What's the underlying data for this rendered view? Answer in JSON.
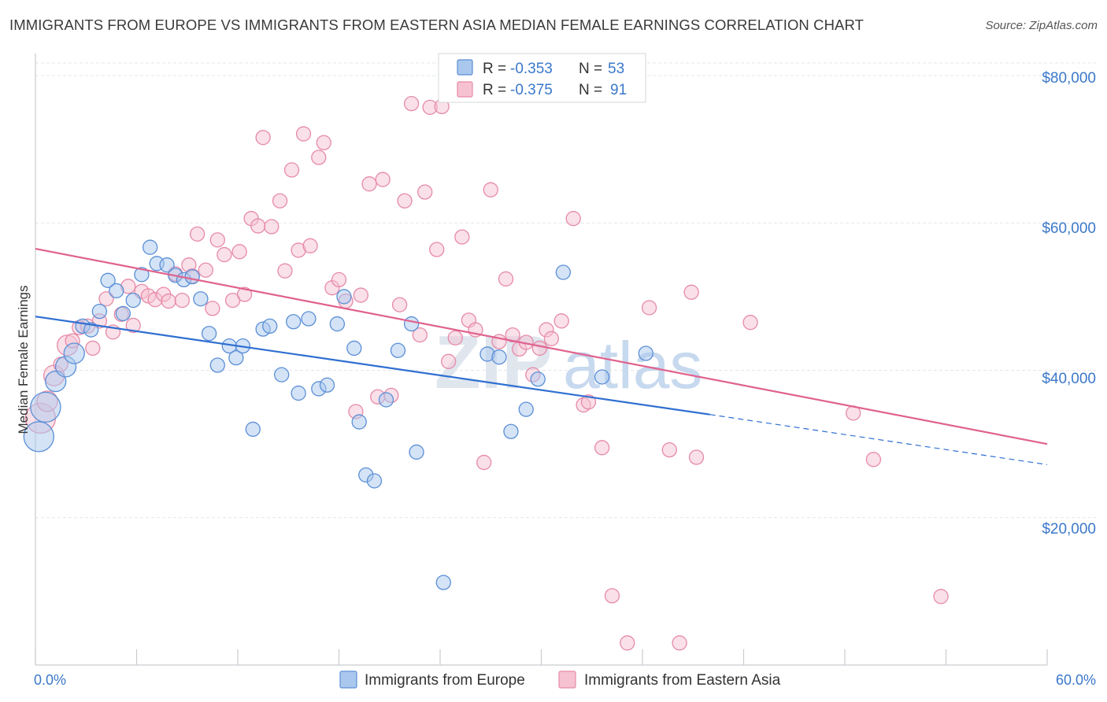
{
  "title": "IMMIGRANTS FROM EUROPE VS IMMIGRANTS FROM EASTERN ASIA MEDIAN FEMALE EARNINGS CORRELATION CHART",
  "source": "Source: ZipAtlas.com",
  "watermark": {
    "zip": "ZIP",
    "atlas": "atlas"
  },
  "colors": {
    "europe_fill": "#aac8ee",
    "europe_stroke": "#5b8fd6",
    "europe_line": "#2f6fd1",
    "asia_fill": "#f6c2d2",
    "asia_stroke": "#e68aa8",
    "asia_line": "#e0628e",
    "grid": "#e3e6ea",
    "axis_text": "#3b78c9"
  },
  "legend": {
    "rows": [
      {
        "r_label": "R =",
        "r_value": "-0.353",
        "n_label": "N =",
        "n_value": "53"
      },
      {
        "r_label": "R =",
        "r_value": "-0.375",
        "n_label": "N =",
        "n_value": "91"
      }
    ]
  },
  "bottom_legend": [
    "Immigrants from Europe",
    "Immigrants from Eastern Asia"
  ],
  "chart_data": {
    "type": "scatter",
    "title": "IMMIGRANTS FROM EUROPE VS IMMIGRANTS FROM EASTERN ASIA MEDIAN FEMALE EARNINGS CORRELATION CHART",
    "xlabel": "",
    "ylabel": "Median Female Earnings",
    "xlim": [
      0,
      60
    ],
    "ylim": [
      0,
      83000
    ],
    "x_tick_labels": [
      "0.0%",
      "60.0%"
    ],
    "y_ticks": [
      20000,
      40000,
      60000,
      80000
    ],
    "y_tick_labels": [
      "$20,000",
      "$40,000",
      "$60,000",
      "$80,000"
    ],
    "grid": true,
    "legend_position": "top-center",
    "series": [
      {
        "name": "Immigrants from Europe",
        "r": -0.353,
        "n": 53,
        "trend": {
          "x0": 0,
          "y0": 47300,
          "x1": 40.0,
          "y1": 34000,
          "dash_to_x": 60,
          "dash_to_y": 27200
        },
        "points": [
          [
            0.2,
            31000,
            3
          ],
          [
            0.6,
            35000,
            3
          ],
          [
            1.2,
            38500,
            2
          ],
          [
            1.8,
            40500,
            2
          ],
          [
            2.3,
            42300,
            2
          ],
          [
            2.8,
            46000,
            1
          ],
          [
            3.3,
            45500,
            1
          ],
          [
            3.8,
            48000,
            1
          ],
          [
            4.3,
            52200,
            1
          ],
          [
            4.8,
            50800,
            1
          ],
          [
            5.2,
            47700,
            1
          ],
          [
            5.8,
            49500,
            1
          ],
          [
            6.3,
            53000,
            1
          ],
          [
            6.8,
            56700,
            1
          ],
          [
            7.2,
            54500,
            1
          ],
          [
            7.8,
            54300,
            1
          ],
          [
            8.3,
            52900,
            1
          ],
          [
            8.8,
            52300,
            1
          ],
          [
            9.3,
            52700,
            1
          ],
          [
            9.8,
            49700,
            1
          ],
          [
            10.3,
            45000,
            1
          ],
          [
            10.8,
            40700,
            1
          ],
          [
            11.5,
            43300,
            1
          ],
          [
            11.9,
            41700,
            1
          ],
          [
            12.3,
            43300,
            1
          ],
          [
            12.9,
            32000,
            1
          ],
          [
            13.5,
            45600,
            1
          ],
          [
            13.9,
            46000,
            1
          ],
          [
            14.6,
            39400,
            1
          ],
          [
            15.3,
            46600,
            1
          ],
          [
            15.6,
            36900,
            1
          ],
          [
            16.2,
            47000,
            1
          ],
          [
            16.8,
            37500,
            1
          ],
          [
            17.3,
            38000,
            1
          ],
          [
            17.9,
            46300,
            1
          ],
          [
            18.3,
            50000,
            1
          ],
          [
            18.9,
            43000,
            1
          ],
          [
            19.2,
            33000,
            1
          ],
          [
            19.6,
            25800,
            1
          ],
          [
            20.1,
            25000,
            1
          ],
          [
            20.8,
            36000,
            1
          ],
          [
            21.5,
            42700,
            1
          ],
          [
            22.3,
            46300,
            1
          ],
          [
            22.6,
            28900,
            1
          ],
          [
            24.2,
            11200,
            1
          ],
          [
            26.8,
            42200,
            1
          ],
          [
            27.5,
            41800,
            1
          ],
          [
            28.2,
            31700,
            1
          ],
          [
            29.1,
            34700,
            1
          ],
          [
            29.8,
            38800,
            1
          ],
          [
            31.3,
            53300,
            1
          ],
          [
            33.6,
            39100,
            1
          ],
          [
            36.2,
            42300,
            1
          ]
        ]
      },
      {
        "name": "Immigrants from Eastern Asia",
        "r": -0.375,
        "n": 91,
        "trend": {
          "x0": 0,
          "y0": 56500,
          "x1": 60.0,
          "y1": 30000
        },
        "points": [
          [
            0.3,
            33500,
            3
          ],
          [
            0.7,
            35800,
            2
          ],
          [
            1.1,
            39300,
            2
          ],
          [
            1.5,
            40800,
            1
          ],
          [
            1.9,
            43400,
            2
          ],
          [
            2.2,
            44000,
            1
          ],
          [
            2.6,
            45800,
            1
          ],
          [
            3.1,
            46000,
            1
          ],
          [
            3.4,
            43000,
            1
          ],
          [
            3.8,
            46700,
            1
          ],
          [
            4.2,
            49700,
            1
          ],
          [
            4.6,
            45200,
            1
          ],
          [
            5.1,
            47600,
            1
          ],
          [
            5.5,
            51400,
            1
          ],
          [
            5.8,
            46100,
            1
          ],
          [
            6.3,
            50700,
            1
          ],
          [
            6.7,
            50100,
            1
          ],
          [
            7.1,
            49600,
            1
          ],
          [
            7.6,
            50300,
            1
          ],
          [
            7.9,
            49400,
            1
          ],
          [
            8.3,
            53100,
            1
          ],
          [
            8.7,
            49500,
            1
          ],
          [
            9.1,
            54300,
            1
          ],
          [
            9.3,
            52800,
            1
          ],
          [
            9.6,
            58500,
            1
          ],
          [
            10.1,
            53600,
            1
          ],
          [
            10.5,
            48400,
            1
          ],
          [
            10.8,
            57700,
            1
          ],
          [
            11.2,
            55700,
            1
          ],
          [
            11.7,
            49500,
            1
          ],
          [
            12.1,
            56100,
            1
          ],
          [
            12.4,
            50300,
            1
          ],
          [
            12.8,
            60600,
            1
          ],
          [
            13.2,
            59600,
            1
          ],
          [
            13.5,
            71600,
            1
          ],
          [
            14.0,
            59500,
            1
          ],
          [
            14.5,
            63000,
            1
          ],
          [
            14.8,
            53500,
            1
          ],
          [
            15.2,
            67200,
            1
          ],
          [
            15.6,
            56300,
            1
          ],
          [
            15.9,
            72100,
            1
          ],
          [
            16.3,
            56900,
            1
          ],
          [
            16.8,
            68900,
            1
          ],
          [
            17.1,
            70900,
            1
          ],
          [
            17.6,
            51200,
            1
          ],
          [
            18.0,
            52300,
            1
          ],
          [
            18.4,
            49400,
            1
          ],
          [
            19.0,
            34400,
            1
          ],
          [
            19.3,
            50200,
            1
          ],
          [
            19.8,
            65300,
            1
          ],
          [
            20.3,
            36400,
            1
          ],
          [
            20.6,
            65900,
            1
          ],
          [
            21.1,
            36600,
            1
          ],
          [
            21.6,
            48900,
            1
          ],
          [
            21.9,
            63000,
            1
          ],
          [
            22.3,
            76200,
            1
          ],
          [
            22.8,
            44800,
            1
          ],
          [
            23.1,
            64200,
            1
          ],
          [
            23.4,
            75700,
            1
          ],
          [
            23.8,
            56400,
            1
          ],
          [
            24.1,
            75800,
            1
          ],
          [
            24.5,
            41200,
            1
          ],
          [
            24.9,
            44400,
            1
          ],
          [
            25.3,
            58100,
            1
          ],
          [
            25.7,
            46800,
            1
          ],
          [
            26.1,
            45500,
            1
          ],
          [
            26.6,
            27500,
            1
          ],
          [
            27.0,
            64500,
            1
          ],
          [
            27.5,
            43900,
            1
          ],
          [
            27.9,
            52400,
            1
          ],
          [
            28.3,
            44800,
            1
          ],
          [
            28.7,
            42900,
            1
          ],
          [
            29.1,
            43800,
            1
          ],
          [
            29.5,
            39400,
            1
          ],
          [
            29.9,
            43000,
            1
          ],
          [
            30.3,
            45500,
            1
          ],
          [
            30.6,
            44300,
            1
          ],
          [
            31.2,
            46700,
            1
          ],
          [
            31.9,
            60600,
            1
          ],
          [
            32.5,
            35300,
            1
          ],
          [
            32.8,
            35700,
            1
          ],
          [
            33.6,
            29500,
            1
          ],
          [
            34.2,
            9400,
            1
          ],
          [
            35.1,
            3000,
            1
          ],
          [
            37.6,
            29200,
            1
          ],
          [
            38.2,
            3000,
            1
          ],
          [
            38.9,
            50600,
            1
          ],
          [
            39.2,
            28200,
            1
          ],
          [
            42.4,
            46500,
            1
          ],
          [
            48.5,
            34200,
            1
          ],
          [
            49.7,
            27900,
            1
          ],
          [
            53.7,
            9300,
            1
          ],
          [
            36.4,
            48500,
            1
          ]
        ]
      }
    ]
  }
}
